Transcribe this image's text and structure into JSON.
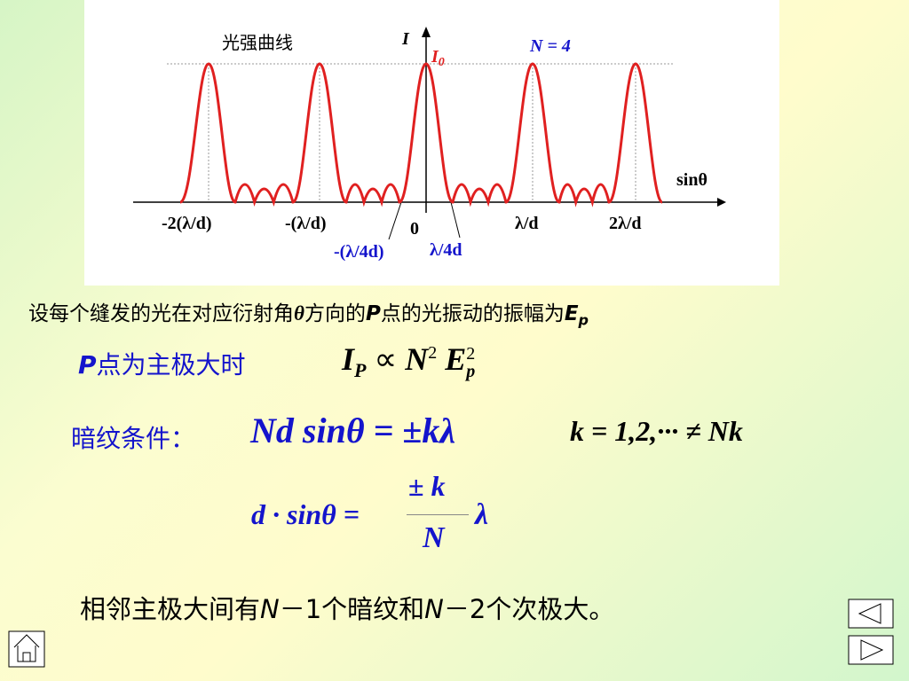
{
  "figure": {
    "title": "光强曲线",
    "y_axis": "I",
    "peak_label": {
      "main": "I",
      "sub": "0"
    },
    "n_label": "N = 4",
    "x_axis": "sinθ",
    "x_labels": [
      "-2(λ/d)",
      "-(λ/d)",
      "0",
      "λ/d",
      "2λ/d"
    ],
    "minor_labels": [
      "-(λ/4d)",
      "λ/4d"
    ]
  },
  "amplitude_note": {
    "text": "设每个缝发的光在对应衍射角",
    "theta": "θ",
    "mid": "方向的",
    "p": "P",
    "rest": "点的光振动的振幅为",
    "e": "E",
    "e_sub": "p"
  },
  "principal_max": {
    "p": "P",
    "label": "点为主极大时",
    "formula": {
      "i": "I",
      "i_sub": "P",
      "prop": "∝",
      "n": "N",
      "n_sup": "2",
      "e": "E",
      "e_sup": "2",
      "e_sub": "p"
    }
  },
  "dark_condition": {
    "label": "暗纹条件：",
    "formula": "Nd sinθ = ±kλ",
    "k_values": "k = 1,2,··· ≠ Nk"
  },
  "fraction_formula": {
    "left": "d · sinθ =",
    "numerator": "± k",
    "denominator": "N",
    "right": "λ"
  },
  "summary": {
    "a": "相邻主极大间有",
    "n1": "N",
    "b": "－1个暗纹和",
    "n2": "N",
    "c": "－2个次极大。"
  }
}
